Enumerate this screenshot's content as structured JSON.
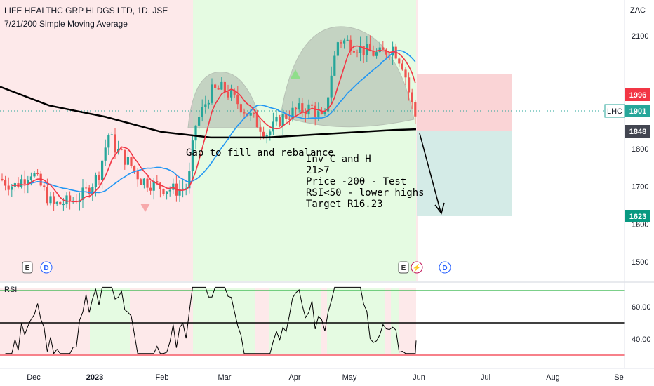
{
  "header": {
    "symbol_line": "LIFE HEALTHC GRP HLDGS LTD, 1D, JSE",
    "indicator_line": "7/21/200 Simple Moving Average"
  },
  "currency": "ZAC",
  "ticker": "LHC",
  "rsi_label": "RSI",
  "annotations": {
    "gap_note": "Gap to fill and rebalance",
    "analysis_lines": [
      "Inv C and H",
      "21>7",
      "Price -200 - Test",
      "RSI<50 - lower highs",
      "Target R16.23"
    ]
  },
  "event_markers": {
    "earnings": "E",
    "dividend": "D",
    "split": "⚡"
  },
  "colors": {
    "up": "#26a69a",
    "down": "#ef5350",
    "sma7": "#f23645",
    "sma21": "#2196f3",
    "sma200": "#000000",
    "bg_red": "#fde9ea",
    "bg_green": "#e5fbe2",
    "shape": "#aab3a8",
    "target_zone": "#cfe9e4",
    "stop_zone": "#f9cfd2"
  },
  "chart_data": {
    "type": "candlestick",
    "title": "LIFE HEALTHC GRP HLDGS LTD, 1D, JSE",
    "ylabel": "ZAC",
    "y_ticks": [
      1500,
      1600,
      1700,
      1800,
      2100
    ],
    "x_ticks": [
      "Dec",
      "2023",
      "Feb",
      "Mar",
      "Apr",
      "May",
      "Jun",
      "Jul",
      "Aug",
      "Se"
    ],
    "price_labels": {
      "stop": 1996,
      "last": 1901,
      "entry": 1848,
      "target": 1623
    },
    "key_points": [
      {
        "label": "start",
        "price": 1720
      },
      {
        "label": "early-Jan high",
        "price": 1860
      },
      {
        "label": "Feb low",
        "price": 1690
      },
      {
        "label": "left shoulder top",
        "price": 1990
      },
      {
        "label": "neckline",
        "price": 1850
      },
      {
        "label": "head top",
        "price": 2120
      },
      {
        "label": "last",
        "price": 1901
      }
    ],
    "sma200_approx": [
      {
        "label": "Dec",
        "price": 1965
      },
      {
        "label": "Feb",
        "price": 1840
      },
      {
        "label": "Mar",
        "price": 1825
      },
      {
        "label": "Jun",
        "price": 1860
      }
    ],
    "rsi": {
      "levels": [
        30,
        50,
        70
      ],
      "y_ticks": [
        40.0,
        60.0
      ],
      "last": 39
    }
  }
}
